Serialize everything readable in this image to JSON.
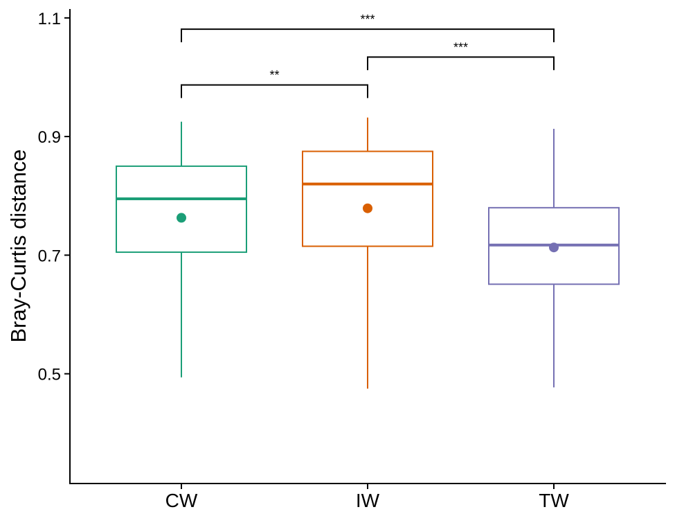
{
  "chart_data": {
    "type": "box",
    "title": "",
    "xlabel": "",
    "ylabel": "Bray-Curtis distance",
    "ylim": [
      0.315,
      1.115
    ],
    "yticks": [
      0.5,
      0.7,
      0.9,
      1.1
    ],
    "ytick_labels": [
      "0.5",
      "0.7",
      "0.9",
      "1.1"
    ],
    "categories": [
      "CW",
      "IW",
      "TW"
    ],
    "colors": [
      "#1b9e77",
      "#d95f02",
      "#7570b3"
    ],
    "boxes": [
      {
        "category": "CW",
        "whisker_low": 0.494,
        "q1": 0.705,
        "median": 0.795,
        "q3": 0.85,
        "whisker_high": 0.925,
        "mean": 0.763
      },
      {
        "category": "IW",
        "whisker_low": 0.475,
        "q1": 0.715,
        "median": 0.82,
        "q3": 0.875,
        "whisker_high": 0.932,
        "mean": 0.779
      },
      {
        "category": "TW",
        "whisker_low": 0.477,
        "q1": 0.651,
        "median": 0.717,
        "q3": 0.78,
        "whisker_high": 0.913,
        "mean": 0.713
      }
    ],
    "comparisons": [
      {
        "from": "CW",
        "to": "IW",
        "label": "**",
        "y": 0.987,
        "tip_y": 0.965
      },
      {
        "from": "IW",
        "to": "TW",
        "label": "***",
        "y": 1.034,
        "tip_y": 1.012
      },
      {
        "from": "CW",
        "to": "TW",
        "label": "***",
        "y": 1.081,
        "tip_y": 1.059
      }
    ]
  }
}
